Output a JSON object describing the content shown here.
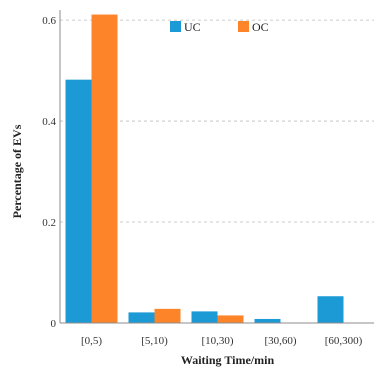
{
  "chart_data": {
    "type": "bar",
    "title": "",
    "xlabel": "Waiting Time/min",
    "ylabel": "Percentage of EVs",
    "categories": [
      "[0,5)",
      "[5,10)",
      "[10,30)",
      "[30,60)",
      "[60,300)"
    ],
    "series": [
      {
        "name": "UC",
        "color": "#1b9ad6",
        "values": [
          0.482,
          0.021,
          0.023,
          0.008,
          0.053
        ]
      },
      {
        "name": "OC",
        "color": "#fe8429",
        "values": [
          0.611,
          0.028,
          0.015,
          0.0,
          0.0
        ]
      }
    ],
    "ylim": [
      0,
      0.62
    ],
    "yticks": [
      0,
      0.2,
      0.4,
      0.6
    ],
    "ytick_labels": [
      "0",
      "0.2",
      "0.4",
      "0.6"
    ],
    "grid": true,
    "legend_position": "top-center"
  }
}
